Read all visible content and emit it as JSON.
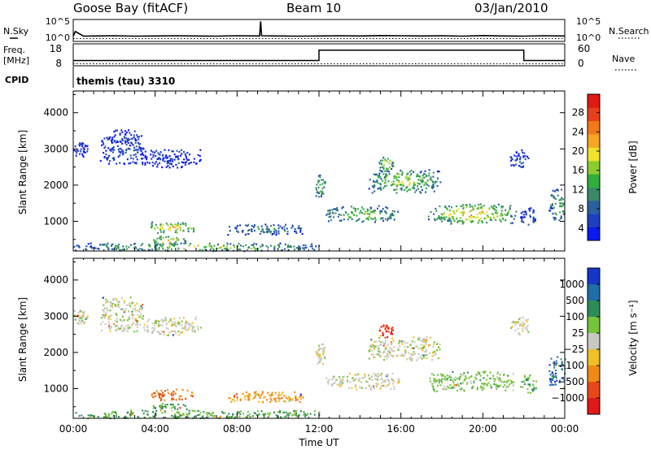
{
  "header": {
    "title": "Goose Bay (fitACF)",
    "beam": "Beam 10",
    "date": "03/Jan/2010"
  },
  "colors": {
    "black": "#000000",
    "scatter_grey": "#c8c8c0"
  },
  "chart_data": [
    {
      "type": "line",
      "panel": "nsky-nsearch",
      "left_label": "N.Sky",
      "right_label": "N.Search",
      "left_ticks": [
        "10^5",
        "10^0"
      ],
      "right_ticks": [
        "10^5",
        "10^0"
      ],
      "x_range_hours": [
        0,
        24
      ],
      "series": [
        {
          "name": "N.Sky",
          "style": "solid",
          "x": [
            0,
            0.1,
            0.5,
            1,
            2,
            3,
            4,
            5,
            6,
            7,
            8,
            9.1,
            9.15,
            9.2,
            10,
            11,
            12,
            13,
            14,
            15,
            16,
            17,
            18,
            19,
            20,
            21,
            22,
            23,
            24
          ],
          "y": [
            0.22,
            0.45,
            0.22,
            0.23,
            0.24,
            0.22,
            0.23,
            0.24,
            0.23,
            0.22,
            0.24,
            0.23,
            0.95,
            0.24,
            0.23,
            0.22,
            0.23,
            0.24,
            0.23,
            0.25,
            0.24,
            0.23,
            0.24,
            0.22,
            0.25,
            0.23,
            0.22,
            0.24,
            0.23
          ]
        },
        {
          "name": "N.Search",
          "style": "dotted",
          "x": [
            0,
            24
          ],
          "y": [
            0.1,
            0.1
          ]
        }
      ]
    },
    {
      "type": "line",
      "panel": "freq-nave",
      "left_label": "Freq.",
      "left_unit": "[MHz]",
      "right_label": "Nave",
      "left_ticks": [
        "18",
        "8"
      ],
      "right_ticks": [
        "60",
        "0"
      ],
      "x_range_hours": [
        0,
        24
      ],
      "series": [
        {
          "name": "Freq.",
          "style": "solid",
          "x": [
            0,
            12,
            12,
            22,
            22,
            24
          ],
          "y": [
            10.5,
            10.5,
            16.3,
            16.3,
            10.5,
            10.5
          ]
        },
        {
          "name": "Nave",
          "style": "dotted",
          "x": [
            0,
            24
          ],
          "y": [
            4,
            4
          ]
        }
      ]
    },
    {
      "type": "label",
      "panel": "cpid",
      "label": "CPID",
      "program": "themis (tau) 3310"
    },
    {
      "type": "heatmap",
      "panel": "power",
      "ylabel": "Slant Range [km]",
      "y_ticks": [
        "1000",
        "2000",
        "3000",
        "4000"
      ],
      "ylim": [
        180,
        4600
      ],
      "colorbar": {
        "label": "Power [dB]",
        "ticks": [
          "28",
          "24",
          "20",
          "16",
          "12",
          "8",
          "4"
        ],
        "colors": [
          "#0b18f0",
          "#1e3fc2",
          "#2a5fa0",
          "#3a8a6a",
          "#2fae3a",
          "#8ccc2e",
          "#f0e22a",
          "#f5a623",
          "#f07a18",
          "#e8401c",
          "#e01a14"
        ]
      },
      "regions": [
        {
          "t": [
            0.0,
            0.7
          ],
          "r": [
            2800,
            3200
          ],
          "level": 0.1
        },
        {
          "t": [
            1.3,
            3.4
          ],
          "r": [
            2600,
            3550
          ],
          "level": 0.15
        },
        {
          "t": [
            3.3,
            6.2
          ],
          "r": [
            2500,
            3000
          ],
          "level": 0.12
        },
        {
          "t": [
            3.7,
            5.9
          ],
          "r": [
            700,
            1000
          ],
          "level": 0.65
        },
        {
          "t": [
            3.8,
            5.6
          ],
          "r": [
            350,
            620
          ],
          "level": 0.6
        },
        {
          "t": [
            0.0,
            12.0
          ],
          "r": [
            200,
            420
          ],
          "level": 0.45
        },
        {
          "t": [
            7.5,
            11.3
          ],
          "r": [
            650,
            950
          ],
          "level": 0.3
        },
        {
          "t": [
            11.8,
            12.3
          ],
          "r": [
            1700,
            2300
          ],
          "level": 0.45
        },
        {
          "t": [
            12.3,
            15.9
          ],
          "r": [
            1000,
            1450
          ],
          "level": 0.45
        },
        {
          "t": [
            14.4,
            17.9
          ],
          "r": [
            1800,
            2450
          ],
          "level": 0.5
        },
        {
          "t": [
            14.9,
            15.6
          ],
          "r": [
            2400,
            2800
          ],
          "level": 0.55
        },
        {
          "t": [
            17.3,
            21.6
          ],
          "r": [
            950,
            1500
          ],
          "level": 0.6
        },
        {
          "t": [
            21.3,
            22.2
          ],
          "r": [
            2500,
            3000
          ],
          "level": 0.12
        },
        {
          "t": [
            21.8,
            22.6
          ],
          "r": [
            900,
            1400
          ],
          "level": 0.2
        },
        {
          "t": [
            23.2,
            24.0
          ],
          "r": [
            1000,
            1900
          ],
          "level": 0.4
        }
      ]
    },
    {
      "type": "heatmap",
      "panel": "velocity",
      "ylabel": "Slant Range [km]",
      "y_ticks": [
        "1000",
        "2000",
        "3000",
        "4000"
      ],
      "ylim": [
        180,
        4600
      ],
      "xlabel": "Time UT",
      "x_ticks": [
        "00:00",
        "04:00",
        "08:00",
        "12:00",
        "16:00",
        "20:00",
        "00:00"
      ],
      "colorbar": {
        "label": "Velocity [m s⁻¹]",
        "ticks": [
          "1000",
          "500",
          "100",
          "25",
          "−25",
          "−100",
          "−500",
          "−1000"
        ],
        "colors": [
          "#1536c8",
          "#1e6ea8",
          "#2e8c58",
          "#74c43c",
          "#c8c8c0",
          "#f0c024",
          "#f08a14",
          "#e84818",
          "#e01818"
        ]
      },
      "regions": [
        {
          "t": [
            0.0,
            0.7
          ],
          "r": [
            2800,
            3200
          ],
          "v": 0
        },
        {
          "t": [
            1.3,
            3.4
          ],
          "r": [
            2600,
            3550
          ],
          "v": 0
        },
        {
          "t": [
            3.3,
            6.2
          ],
          "r": [
            2500,
            3000
          ],
          "v": 0
        },
        {
          "t": [
            3.7,
            5.9
          ],
          "r": [
            700,
            1000
          ],
          "v": -0.5
        },
        {
          "t": [
            3.8,
            5.6
          ],
          "r": [
            350,
            620
          ],
          "v": 0.4
        },
        {
          "t": [
            0.0,
            12.0
          ],
          "r": [
            200,
            420
          ],
          "v": 0.35
        },
        {
          "t": [
            7.5,
            11.3
          ],
          "r": [
            650,
            950
          ],
          "v": -0.4
        },
        {
          "t": [
            11.8,
            12.3
          ],
          "r": [
            1700,
            2300
          ],
          "v": 0
        },
        {
          "t": [
            12.3,
            15.9
          ],
          "r": [
            1000,
            1450
          ],
          "v": 0
        },
        {
          "t": [
            14.4,
            17.9
          ],
          "r": [
            1800,
            2450
          ],
          "v": 0
        },
        {
          "t": [
            14.9,
            15.6
          ],
          "r": [
            2400,
            2800
          ],
          "v": -0.8
        },
        {
          "t": [
            17.3,
            21.6
          ],
          "r": [
            950,
            1500
          ],
          "v": 0.2
        },
        {
          "t": [
            21.3,
            22.2
          ],
          "r": [
            2500,
            3000
          ],
          "v": 0
        },
        {
          "t": [
            21.8,
            22.6
          ],
          "r": [
            900,
            1400
          ],
          "v": 0.3
        },
        {
          "t": [
            23.2,
            24.0
          ],
          "r": [
            1000,
            1900
          ],
          "v": 0.7
        }
      ]
    }
  ]
}
